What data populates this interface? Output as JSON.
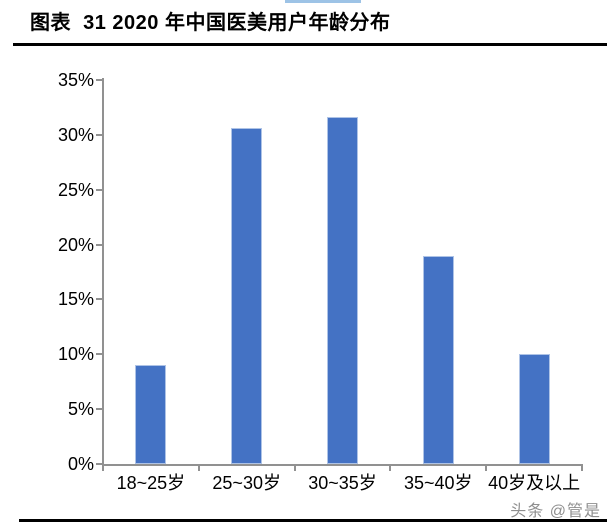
{
  "header": {
    "decoration": "light-blue-line-fragment",
    "accent_color": "#9dc3e6"
  },
  "chart_data": {
    "type": "bar",
    "title": "图表  31 2020 年中国医美用户年龄分布",
    "categories": [
      "18~25岁",
      "25~30岁",
      "30~35岁",
      "35~40岁",
      "40岁及以上"
    ],
    "values": [
      9.0,
      30.6,
      31.6,
      19.0,
      10.0
    ],
    "unit": "%",
    "xlabel": "",
    "ylabel": "",
    "ylim": [
      0,
      35
    ],
    "ytick_step": 5,
    "ytick_labels": [
      "0%",
      "5%",
      "10%",
      "15%",
      "20%",
      "25%",
      "30%",
      "35%"
    ],
    "bar_color": "#4472c4",
    "bar_border_color": "#aec3e6",
    "axis_color": "#919191",
    "grid": false,
    "legend": "none"
  },
  "footer": {
    "watermark": "头条 @管是"
  }
}
